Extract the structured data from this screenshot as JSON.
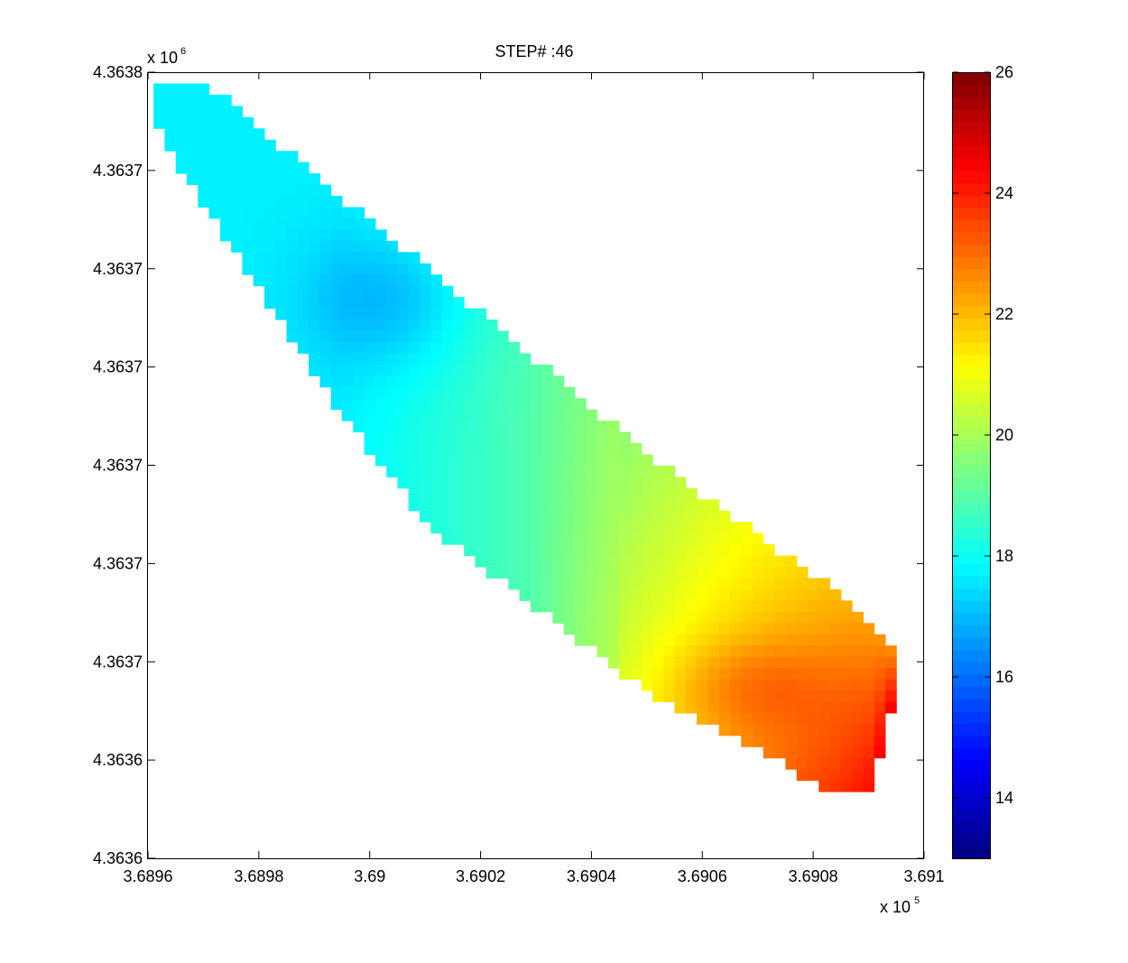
{
  "chart_data": {
    "type": "heatmap",
    "title": "STEP# :46",
    "x_ticks": [
      "3.6896",
      "3.6898",
      "3.69",
      "3.6902",
      "3.6904",
      "3.6906",
      "3.6908",
      "3.691"
    ],
    "x_tick_values": [
      368960,
      368980,
      369000,
      369020,
      369040,
      369060,
      369080,
      369100
    ],
    "x_exponent_base": "x 10",
    "x_exponent_power": "5",
    "y_ticks": [
      "4.3638",
      "4.3637",
      "4.3637",
      "4.3637",
      "4.3637",
      "4.3637",
      "4.3637",
      "4.3636",
      "4.3636"
    ],
    "y_exponent_base": "x 10",
    "y_exponent_power": "6",
    "xlim": [
      368960,
      369100
    ],
    "colorbar": {
      "colormap": "jet",
      "clim": [
        13,
        26
      ],
      "ticks": [
        "26",
        "24",
        "22",
        "20",
        "18",
        "16",
        "14"
      ],
      "tick_values": [
        26,
        24,
        22,
        20,
        18,
        16,
        14
      ]
    },
    "field": {
      "grid_step": 2,
      "extent_x": [
        368961,
        369095
      ],
      "blob_low": {
        "x": 369004,
        "y_frac": 0.29,
        "value": 16.9
      },
      "blob_high": {
        "x": 369068,
        "y_frac": 0.78,
        "value": 24.0
      },
      "mid_yellow_value": 21.0
    }
  }
}
